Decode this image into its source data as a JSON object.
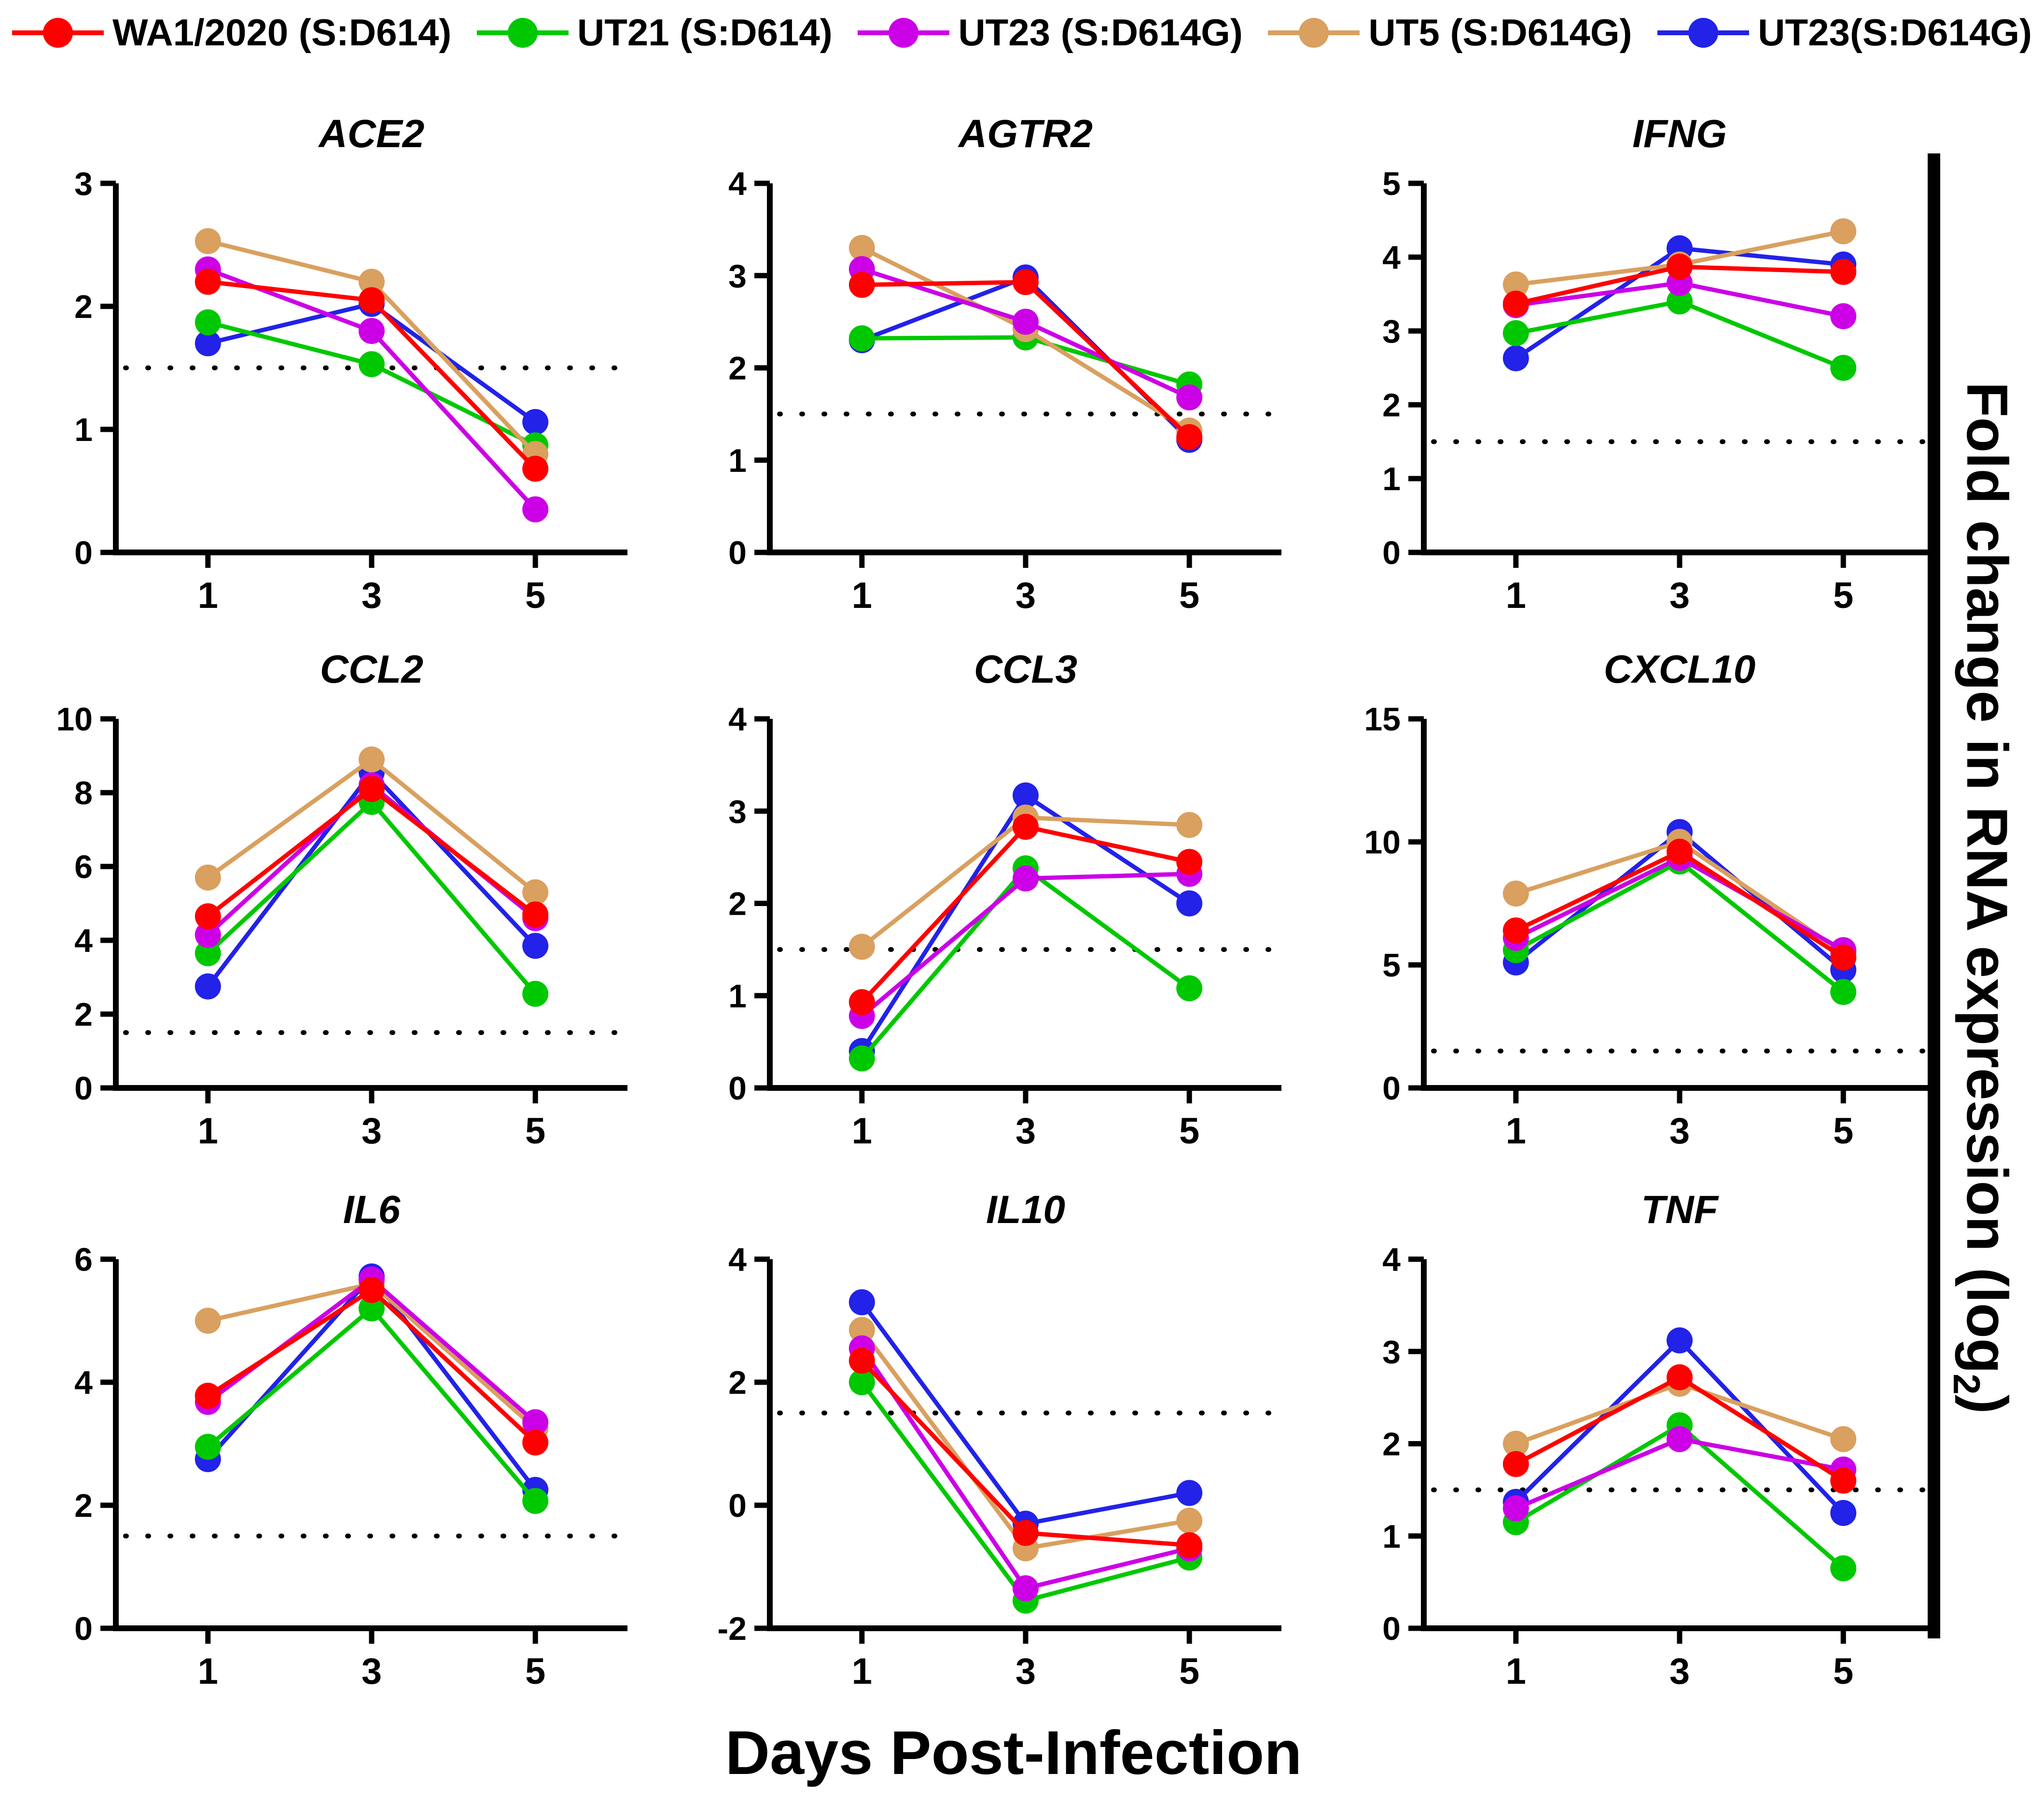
{
  "legend": {
    "items": [
      {
        "key": "red",
        "label": "WA1/2020 (S:D614)",
        "color": "#FF0000"
      },
      {
        "key": "green",
        "label": "UT21 (S:D614)",
        "color": "#00C800"
      },
      {
        "key": "magenta",
        "label": "UT23 (S:D614G)",
        "color": "#CC00E6"
      },
      {
        "key": "tan",
        "label": "UT5 (S:D614G)",
        "color": "#D9A05F"
      },
      {
        "key": "blue",
        "label": "UT23(S:D614G)",
        "color": "#2222E8"
      }
    ]
  },
  "axes": {
    "x_label": "Days Post-Infection",
    "y_label_main": "Fold change in RNA expression (log",
    "y_label_sub": "2",
    "y_label_end": ")",
    "x_ticks": [
      1,
      3,
      5
    ]
  },
  "chart_data": [
    {
      "type": "line",
      "title": "ACE2",
      "x": [
        1,
        3,
        5
      ],
      "ylim": [
        0,
        3
      ],
      "yticks": [
        0,
        1,
        2,
        3
      ],
      "threshold": 1.5,
      "grid": false,
      "legend_position": "top",
      "series": [
        {
          "name": "WA1/2020 (S:D614)",
          "color": "#FF0000",
          "values": [
            2.2,
            2.05,
            0.68
          ]
        },
        {
          "name": "UT21 (S:D614)",
          "color": "#00C800",
          "values": [
            1.87,
            1.53,
            0.87
          ]
        },
        {
          "name": "UT23 (S:D614G)",
          "color": "#CC00E6",
          "values": [
            2.3,
            1.8,
            0.35
          ]
        },
        {
          "name": "UT5 (S:D614G)",
          "color": "#D9A05F",
          "values": [
            2.53,
            2.2,
            0.8
          ]
        },
        {
          "name": "UT23(S:D614G)",
          "color": "#2222E8",
          "values": [
            1.7,
            2.02,
            1.06
          ]
        }
      ]
    },
    {
      "type": "line",
      "title": "AGTR2",
      "x": [
        1,
        3,
        5
      ],
      "ylim": [
        0,
        4
      ],
      "yticks": [
        0,
        1,
        2,
        3,
        4
      ],
      "threshold": 1.5,
      "grid": false,
      "legend_position": "top",
      "series": [
        {
          "name": "WA1/2020 (S:D614)",
          "color": "#FF0000",
          "values": [
            2.9,
            2.93,
            1.25
          ]
        },
        {
          "name": "UT21 (S:D614)",
          "color": "#00C800",
          "values": [
            2.32,
            2.33,
            1.82
          ]
        },
        {
          "name": "UT23 (S:D614G)",
          "color": "#CC00E6",
          "values": [
            3.07,
            2.5,
            1.68
          ]
        },
        {
          "name": "UT5 (S:D614G)",
          "color": "#D9A05F",
          "values": [
            3.3,
            2.42,
            1.32
          ]
        },
        {
          "name": "UT23(S:D614G)",
          "color": "#2222E8",
          "values": [
            2.3,
            2.98,
            1.22
          ]
        }
      ]
    },
    {
      "type": "line",
      "title": "IFNG",
      "x": [
        1,
        3,
        5
      ],
      "ylim": [
        0,
        5
      ],
      "yticks": [
        0,
        1,
        2,
        3,
        4,
        5
      ],
      "threshold": 1.5,
      "grid": false,
      "legend_position": "top",
      "series": [
        {
          "name": "WA1/2020 (S:D614)",
          "color": "#FF0000",
          "values": [
            3.37,
            3.87,
            3.8
          ]
        },
        {
          "name": "UT21 (S:D614)",
          "color": "#00C800",
          "values": [
            2.97,
            3.4,
            2.5
          ]
        },
        {
          "name": "UT23 (S:D614G)",
          "color": "#CC00E6",
          "values": [
            3.35,
            3.65,
            3.2
          ]
        },
        {
          "name": "UT5 (S:D614G)",
          "color": "#D9A05F",
          "values": [
            3.63,
            3.9,
            4.35
          ]
        },
        {
          "name": "UT23(S:D614G)",
          "color": "#2222E8",
          "values": [
            2.63,
            4.12,
            3.9
          ]
        }
      ]
    },
    {
      "type": "line",
      "title": "CCL2",
      "x": [
        1,
        3,
        5
      ],
      "ylim": [
        0,
        10
      ],
      "yticks": [
        0,
        2,
        4,
        6,
        8,
        10
      ],
      "threshold": 1.5,
      "grid": false,
      "legend_position": "top",
      "series": [
        {
          "name": "WA1/2020 (S:D614)",
          "color": "#FF0000",
          "values": [
            4.65,
            8.1,
            4.7
          ]
        },
        {
          "name": "UT21 (S:D614)",
          "color": "#00C800",
          "values": [
            3.65,
            7.75,
            2.55
          ]
        },
        {
          "name": "UT23 (S:D614G)",
          "color": "#CC00E6",
          "values": [
            4.15,
            8.2,
            4.6
          ]
        },
        {
          "name": "UT5 (S:D614G)",
          "color": "#D9A05F",
          "values": [
            5.7,
            8.9,
            5.3
          ]
        },
        {
          "name": "UT23(S:D614G)",
          "color": "#2222E8",
          "values": [
            2.75,
            8.55,
            3.85
          ]
        }
      ]
    },
    {
      "type": "line",
      "title": "CCL3",
      "x": [
        1,
        3,
        5
      ],
      "ylim": [
        0,
        4
      ],
      "yticks": [
        0,
        1,
        2,
        3,
        4
      ],
      "threshold": 1.5,
      "grid": false,
      "legend_position": "top",
      "series": [
        {
          "name": "WA1/2020 (S:D614)",
          "color": "#FF0000",
          "values": [
            0.93,
            2.83,
            2.45
          ]
        },
        {
          "name": "UT21 (S:D614)",
          "color": "#00C800",
          "values": [
            0.32,
            2.38,
            1.08
          ]
        },
        {
          "name": "UT23 (S:D614G)",
          "color": "#CC00E6",
          "values": [
            0.78,
            2.27,
            2.32
          ]
        },
        {
          "name": "UT5 (S:D614G)",
          "color": "#D9A05F",
          "values": [
            1.53,
            2.93,
            2.85
          ]
        },
        {
          "name": "UT23(S:D614G)",
          "color": "#2222E8",
          "values": [
            0.4,
            3.17,
            2.0
          ]
        }
      ]
    },
    {
      "type": "line",
      "title": "CXCL10",
      "x": [
        1,
        3,
        5
      ],
      "ylim": [
        0,
        15
      ],
      "yticks": [
        0,
        5,
        10,
        15
      ],
      "threshold": 1.5,
      "grid": false,
      "legend_position": "top",
      "series": [
        {
          "name": "WA1/2020 (S:D614)",
          "color": "#FF0000",
          "values": [
            6.4,
            9.6,
            5.3
          ]
        },
        {
          "name": "UT21 (S:D614)",
          "color": "#00C800",
          "values": [
            5.6,
            9.2,
            3.9
          ]
        },
        {
          "name": "UT23 (S:D614G)",
          "color": "#CC00E6",
          "values": [
            6.1,
            9.35,
            5.6
          ]
        },
        {
          "name": "UT5 (S:D614G)",
          "color": "#D9A05F",
          "values": [
            7.9,
            10.0,
            5.5
          ]
        },
        {
          "name": "UT23(S:D614G)",
          "color": "#2222E8",
          "values": [
            5.1,
            10.4,
            4.8
          ]
        }
      ]
    },
    {
      "type": "line",
      "title": "IL6",
      "x": [
        1,
        3,
        5
      ],
      "ylim": [
        0,
        6
      ],
      "yticks": [
        0,
        2,
        4,
        6
      ],
      "threshold": 1.5,
      "grid": false,
      "legend_position": "top",
      "series": [
        {
          "name": "WA1/2020 (S:D614)",
          "color": "#FF0000",
          "values": [
            3.78,
            5.5,
            3.02
          ]
        },
        {
          "name": "UT21 (S:D614)",
          "color": "#00C800",
          "values": [
            2.95,
            5.2,
            2.07
          ]
        },
        {
          "name": "UT23 (S:D614G)",
          "color": "#CC00E6",
          "values": [
            3.68,
            5.67,
            3.35
          ]
        },
        {
          "name": "UT5 (S:D614G)",
          "color": "#D9A05F",
          "values": [
            5.0,
            5.6,
            3.25
          ]
        },
        {
          "name": "UT23(S:D614G)",
          "color": "#2222E8",
          "values": [
            2.75,
            5.72,
            2.25
          ]
        }
      ]
    },
    {
      "type": "line",
      "title": "IL10",
      "x": [
        1,
        3,
        5
      ],
      "ylim": [
        -2,
        4
      ],
      "yticks": [
        -2,
        0,
        2,
        4
      ],
      "threshold": 1.5,
      "grid": false,
      "legend_position": "top",
      "series": [
        {
          "name": "WA1/2020 (S:D614)",
          "color": "#FF0000",
          "values": [
            2.35,
            -0.45,
            -0.65
          ]
        },
        {
          "name": "UT21 (S:D614)",
          "color": "#00C800",
          "values": [
            2.0,
            -1.55,
            -0.85
          ]
        },
        {
          "name": "UT23 (S:D614G)",
          "color": "#CC00E6",
          "values": [
            2.55,
            -1.35,
            -0.7
          ]
        },
        {
          "name": "UT5 (S:D614G)",
          "color": "#D9A05F",
          "values": [
            2.85,
            -0.7,
            -0.25
          ]
        },
        {
          "name": "UT23(S:D614G)",
          "color": "#2222E8",
          "values": [
            3.3,
            -0.3,
            0.2
          ]
        }
      ]
    },
    {
      "type": "line",
      "title": "TNF",
      "x": [
        1,
        3,
        5
      ],
      "ylim": [
        0,
        4
      ],
      "yticks": [
        0,
        1,
        2,
        3,
        4
      ],
      "threshold": 1.5,
      "grid": false,
      "legend_position": "top",
      "series": [
        {
          "name": "WA1/2020 (S:D614)",
          "color": "#FF0000",
          "values": [
            1.78,
            2.72,
            1.6
          ]
        },
        {
          "name": "UT21 (S:D614)",
          "color": "#00C800",
          "values": [
            1.15,
            2.2,
            0.65
          ]
        },
        {
          "name": "UT23 (S:D614G)",
          "color": "#CC00E6",
          "values": [
            1.3,
            2.05,
            1.72
          ]
        },
        {
          "name": "UT5 (S:D614G)",
          "color": "#D9A05F",
          "values": [
            2.0,
            2.65,
            2.05
          ]
        },
        {
          "name": "UT23(S:D614G)",
          "color": "#2222E8",
          "values": [
            1.37,
            3.12,
            1.25
          ]
        }
      ]
    }
  ],
  "draw_order_hint": [
    "blue",
    "green",
    "tan",
    "magenta",
    "red"
  ]
}
